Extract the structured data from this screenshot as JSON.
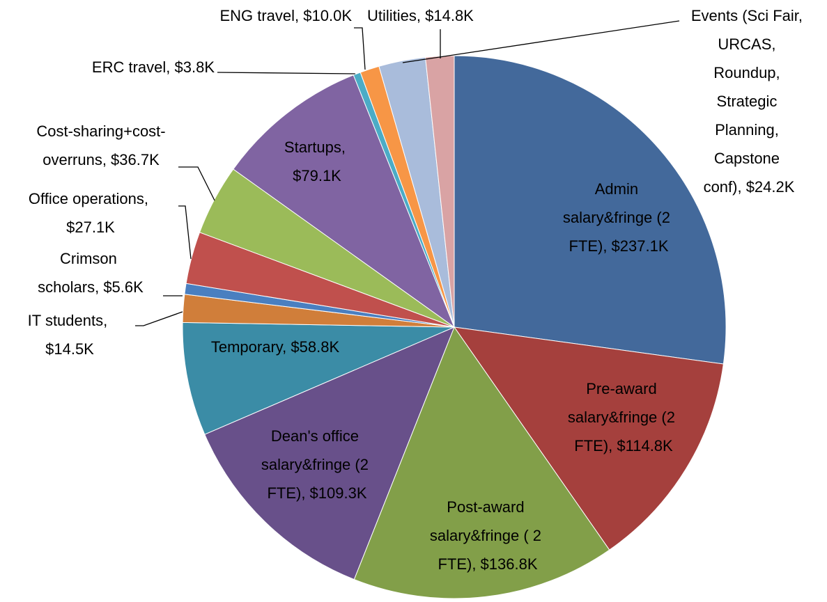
{
  "chart_data": {
    "type": "pie",
    "values": [
      237.1,
      114.8,
      136.8,
      109.3,
      58.8,
      14.5,
      5.6,
      27.1,
      36.7,
      79.1,
      3.8,
      10.0,
      24.2,
      14.8
    ],
    "value_labels": [
      "Admin salary&fringe (2 FTE), $237.1K",
      "Pre-award salary&fringe (2 FTE), $114.8K",
      "Post-award salary&fringe ( 2 FTE), $136.8K",
      "Dean's office salary&fringe (2 FTE), $109.3K",
      "Temporary, $58.8K",
      "IT students, $14.5K",
      "Crimson scholars, $5.6K",
      "Office operations, $27.1K",
      "Cost-sharing+cost-overruns, $36.7K",
      "Startups, $79.1K",
      "ERC travel, $3.8K",
      "ENG travel, $10.0K",
      "Events (Sci Fair, URCAS, Roundup, Strategic Planning, Capstone conf), $24.2K",
      "Utilities, $14.8K"
    ],
    "colors": [
      "#43699b",
      "#a5403d",
      "#829f49",
      "#68508a",
      "#3b8ca6",
      "#d07e3a",
      "#4a7fc0",
      "#c0504d",
      "#9bbb59",
      "#8064a2",
      "#4bacc6",
      "#f79646",
      "#a9bcdb",
      "#d9a3a4"
    ]
  }
}
